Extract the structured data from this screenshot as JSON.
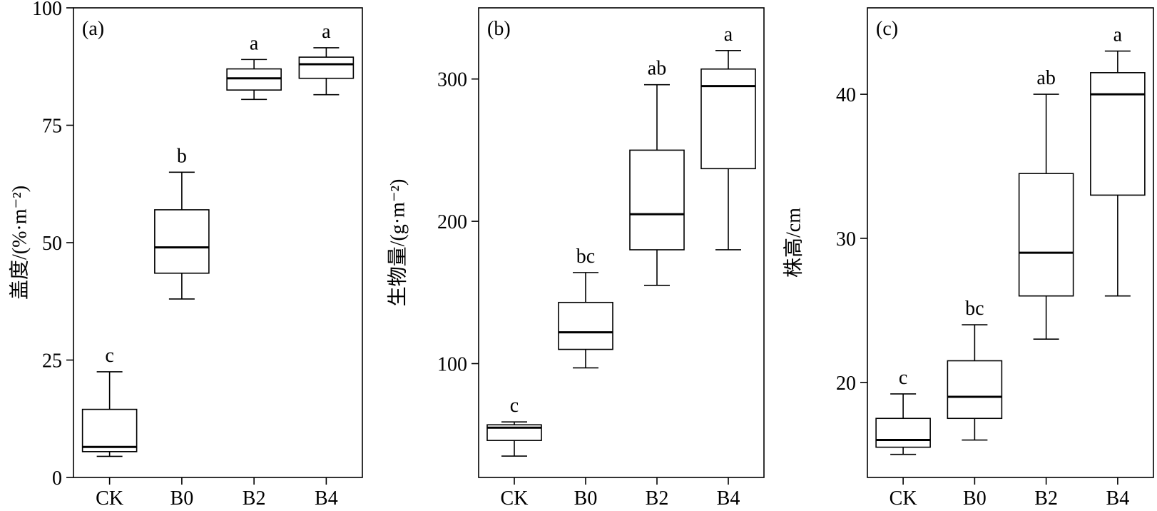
{
  "chart_data": [
    {
      "type": "box",
      "panel_label": "(a)",
      "ylabel": "盖度/(%·m⁻²)",
      "ylim": [
        0,
        100
      ],
      "yticks": [
        0,
        25,
        50,
        75,
        100
      ],
      "categories": [
        "CK",
        "B0",
        "B2",
        "B4"
      ],
      "boxes": [
        {
          "category": "CK",
          "min": 4.5,
          "q1": 5.5,
          "median": 6.5,
          "q3": 14.5,
          "max": 22.5,
          "letter": "c"
        },
        {
          "category": "B0",
          "min": 38,
          "q1": 43.5,
          "median": 49,
          "q3": 57,
          "max": 65,
          "letter": "b"
        },
        {
          "category": "B2",
          "min": 80.5,
          "q1": 82.5,
          "median": 85,
          "q3": 87,
          "max": 89,
          "letter": "a"
        },
        {
          "category": "B4",
          "min": 81.5,
          "q1": 85,
          "median": 88,
          "q3": 89.5,
          "max": 91.5,
          "letter": "a"
        }
      ]
    },
    {
      "type": "box",
      "panel_label": "(b)",
      "ylabel": "生物量/(g·m⁻²)",
      "ylim": [
        20,
        350
      ],
      "yticks": [
        100,
        200,
        300
      ],
      "categories": [
        "CK",
        "B0",
        "B2",
        "B4"
      ],
      "boxes": [
        {
          "category": "CK",
          "min": 35,
          "q1": 46,
          "median": 55,
          "q3": 57,
          "max": 59,
          "letter": "c"
        },
        {
          "category": "B0",
          "min": 97,
          "q1": 110,
          "median": 122,
          "q3": 143,
          "max": 164,
          "letter": "bc"
        },
        {
          "category": "B2",
          "min": 155,
          "q1": 180,
          "median": 205,
          "q3": 250,
          "max": 296,
          "letter": "ab"
        },
        {
          "category": "B4",
          "min": 180,
          "q1": 237,
          "median": 295,
          "q3": 307,
          "max": 320,
          "letter": "a"
        }
      ]
    },
    {
      "type": "box",
      "panel_label": "(c)",
      "ylabel": "株高/cm",
      "ylim": [
        13.4,
        46
      ],
      "yticks": [
        20,
        30,
        40
      ],
      "categories": [
        "CK",
        "B0",
        "B2",
        "B4"
      ],
      "boxes": [
        {
          "category": "CK",
          "min": 15,
          "q1": 15.5,
          "median": 16,
          "q3": 17.5,
          "max": 19.2,
          "letter": "c"
        },
        {
          "category": "B0",
          "min": 16,
          "q1": 17.5,
          "median": 19,
          "q3": 21.5,
          "max": 24,
          "letter": "bc"
        },
        {
          "category": "B2",
          "min": 23,
          "q1": 26,
          "median": 29,
          "q3": 34.5,
          "max": 40,
          "letter": "ab"
        },
        {
          "category": "B4",
          "min": 26,
          "q1": 33,
          "median": 40,
          "q3": 41.5,
          "max": 43,
          "letter": "a"
        }
      ]
    }
  ]
}
